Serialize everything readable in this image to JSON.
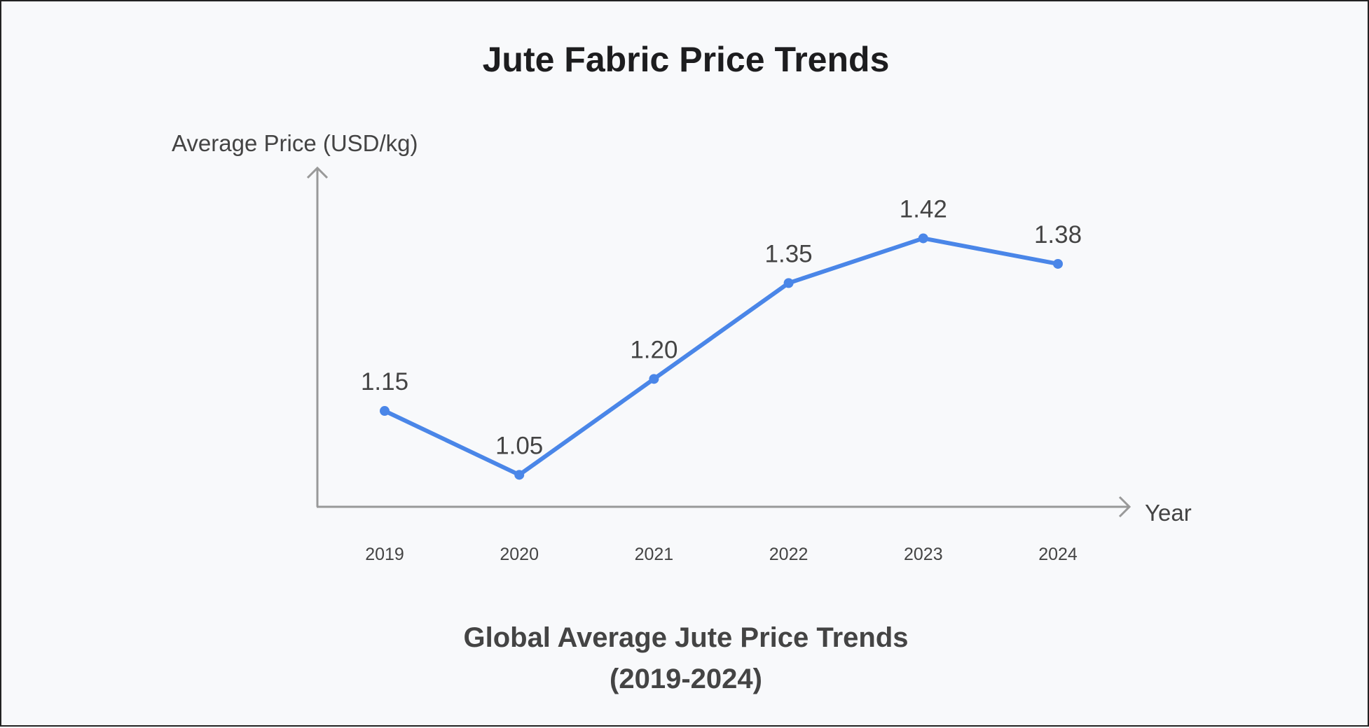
{
  "chart_data": {
    "type": "line",
    "title": "Jute Fabric Price Trends",
    "subtitle": [
      "Global Average Jute Price Trends",
      "(2019-2024)"
    ],
    "xlabel": "Year",
    "ylabel": "Average Price (USD/kg)",
    "categories": [
      "2019",
      "2020",
      "2021",
      "2022",
      "2023",
      "2024"
    ],
    "values": [
      1.15,
      1.05,
      1.2,
      1.35,
      1.42,
      1.38
    ],
    "data_labels": [
      "1.15",
      "1.05",
      "1.20",
      "1.35",
      "1.42",
      "1.38"
    ],
    "ylim": [
      1.0,
      1.53
    ],
    "grid": false,
    "line_color": "#4a86e8",
    "axis_color": "#999999"
  }
}
